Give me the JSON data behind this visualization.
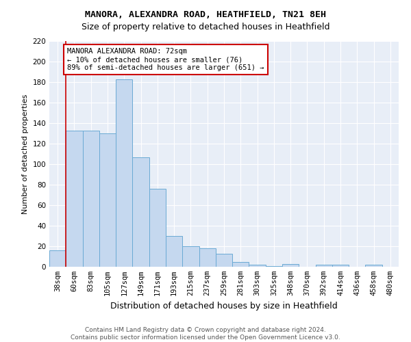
{
  "title": "MANORA, ALEXANDRA ROAD, HEATHFIELD, TN21 8EH",
  "subtitle": "Size of property relative to detached houses in Heathfield",
  "xlabel": "Distribution of detached houses by size in Heathfield",
  "ylabel": "Number of detached properties",
  "bins": [
    "38sqm",
    "60sqm",
    "83sqm",
    "105sqm",
    "127sqm",
    "149sqm",
    "171sqm",
    "193sqm",
    "215sqm",
    "237sqm",
    "259sqm",
    "281sqm",
    "303sqm",
    "325sqm",
    "348sqm",
    "370sqm",
    "392sqm",
    "414sqm",
    "436sqm",
    "458sqm",
    "480sqm"
  ],
  "values": [
    16,
    133,
    133,
    130,
    183,
    107,
    76,
    30,
    20,
    18,
    13,
    5,
    2,
    1,
    3,
    0,
    2,
    2,
    0,
    2,
    0
  ],
  "bar_color": "#c5d8ef",
  "bar_edge_color": "#6aaad4",
  "vline_color": "#cc0000",
  "annotation_text": "MANORA ALEXANDRA ROAD: 72sqm\n← 10% of detached houses are smaller (76)\n89% of semi-detached houses are larger (651) →",
  "annotation_box_edge": "#cc0000",
  "ylim": [
    0,
    220
  ],
  "yticks": [
    0,
    20,
    40,
    60,
    80,
    100,
    120,
    140,
    160,
    180,
    200,
    220
  ],
  "background_color": "#e8eef7",
  "footnote": "Contains HM Land Registry data © Crown copyright and database right 2024.\nContains public sector information licensed under the Open Government Licence v3.0.",
  "title_fontsize": 9.5,
  "subtitle_fontsize": 9,
  "xlabel_fontsize": 9,
  "ylabel_fontsize": 8,
  "tick_fontsize": 7.5,
  "annot_fontsize": 7.5,
  "footnote_fontsize": 6.5
}
